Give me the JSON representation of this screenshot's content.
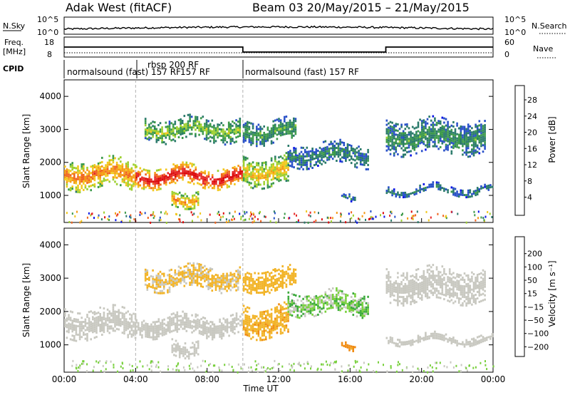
{
  "header": {
    "station": "Adak West (fitACF)",
    "beam_dates": "Beam 03 20/May/2015 – 21/May/2015"
  },
  "noise_panel": {
    "left_label": "N.Sky",
    "left_ticks": [
      "10^5",
      "10^0"
    ],
    "right_label": "N.Search",
    "right_ticks": [
      "10^5",
      "10^0"
    ]
  },
  "freq_panel": {
    "left_label_1": "Freq.",
    "left_label_2": "[MHz]",
    "left_ticks": [
      "18",
      "8"
    ],
    "right_label": "Nave",
    "right_ticks": [
      "60",
      "0"
    ]
  },
  "cpid_panel": {
    "label": "CPID",
    "entries": [
      "normalsound (fast) 157 RF",
      "rbsp 200 RF",
      "157 RF",
      "normalsound (fast) 157 RF"
    ]
  },
  "x_axis": {
    "title": "Time UT",
    "ticks": [
      "00:00",
      "04:00",
      "08:00",
      "12:00",
      "16:00",
      "20:00",
      "00:00"
    ]
  },
  "chart_data": [
    {
      "type": "heatmap",
      "panel": "power",
      "ylabel": "Slant Range [km]",
      "yticks": [
        "1000",
        "2000",
        "3000",
        "4000"
      ],
      "ylim": [
        180,
        4500
      ],
      "xlim": [
        0,
        24
      ],
      "colorbar_label": "Power [dB]",
      "colorbar_ticks": [
        "4",
        "8",
        "12",
        "16",
        "20",
        "24",
        "28"
      ],
      "colorbar_colors": [
        "#0a14e6",
        "#2850c8",
        "#2a7a6a",
        "#3c9a4a",
        "#9ed030",
        "#f2c81e",
        "#f59a14",
        "#f0641e",
        "#e62828",
        "#dc0a0a"
      ],
      "echo_regions": [
        {
          "t0": 0.0,
          "t1": 4.0,
          "r0": 1250,
          "r1": 2100,
          "level": 18
        },
        {
          "t0": 4.0,
          "t1": 10.0,
          "r0": 1300,
          "r1": 1900,
          "level": 24
        },
        {
          "t0": 6.0,
          "t1": 7.5,
          "r0": 700,
          "r1": 1200,
          "level": 16
        },
        {
          "t0": 4.5,
          "t1": 9.8,
          "r0": 2700,
          "r1": 3350,
          "level": 10
        },
        {
          "t0": 10.0,
          "t1": 12.5,
          "r0": 1300,
          "r1": 2200,
          "level": 14
        },
        {
          "t0": 10.0,
          "t1": 13.0,
          "r0": 2600,
          "r1": 3300,
          "level": 8
        },
        {
          "t0": 12.5,
          "t1": 17.0,
          "r0": 1900,
          "r1": 2600,
          "level": 6
        },
        {
          "t0": 15.5,
          "t1": 16.3,
          "r0": 950,
          "r1": 1150,
          "level": 6
        },
        {
          "t0": 18.0,
          "t1": 24.0,
          "r0": 1050,
          "r1": 1300,
          "level": 5
        },
        {
          "t0": 18.0,
          "t1": 23.5,
          "r0": 2300,
          "r1": 3300,
          "level": 7
        }
      ]
    },
    {
      "type": "heatmap",
      "panel": "velocity",
      "ylabel": "Slant Range [km]",
      "yticks": [
        "1000",
        "2000",
        "3000",
        "4000"
      ],
      "ylim": [
        180,
        4500
      ],
      "xlim": [
        0,
        24
      ],
      "colorbar_label": "Velocity [m s⁻¹]",
      "colorbar_ticks": [
        "200",
        "100",
        "50",
        "15",
        "−15",
        "−50",
        "−100",
        "−200"
      ],
      "colorbar_colors": [
        "#1e32b4",
        "#3264c8",
        "#2a7a5a",
        "#3caa3c",
        "#78d03c",
        "#c8c8c0",
        "#f2b428",
        "#f08c14",
        "#f05a1e",
        "#dc0a0a"
      ],
      "echo_regions": [
        {
          "t0": 0.0,
          "t1": 4.0,
          "r0": 1250,
          "r1": 2100,
          "level": 0
        },
        {
          "t0": 4.0,
          "t1": 10.0,
          "r0": 1300,
          "r1": 1900,
          "level": 0
        },
        {
          "t0": 6.0,
          "t1": 7.5,
          "r0": 700,
          "r1": 1200,
          "level": 0
        },
        {
          "t0": 4.5,
          "t1": 9.8,
          "r0": 2700,
          "r1": 3350,
          "level": -20
        },
        {
          "t0": 10.0,
          "t1": 12.5,
          "r0": 1300,
          "r1": 2200,
          "level": -40
        },
        {
          "t0": 10.0,
          "t1": 13.0,
          "r0": 2600,
          "r1": 3300,
          "level": -30
        },
        {
          "t0": 12.5,
          "t1": 17.0,
          "r0": 1900,
          "r1": 2600,
          "level": 20
        },
        {
          "t0": 15.5,
          "t1": 16.3,
          "r0": 950,
          "r1": 1150,
          "level": -60
        },
        {
          "t0": 18.0,
          "t1": 24.0,
          "r0": 1050,
          "r1": 1300,
          "level": 0
        },
        {
          "t0": 18.0,
          "t1": 23.5,
          "r0": 2300,
          "r1": 3300,
          "level": 0
        }
      ]
    }
  ]
}
